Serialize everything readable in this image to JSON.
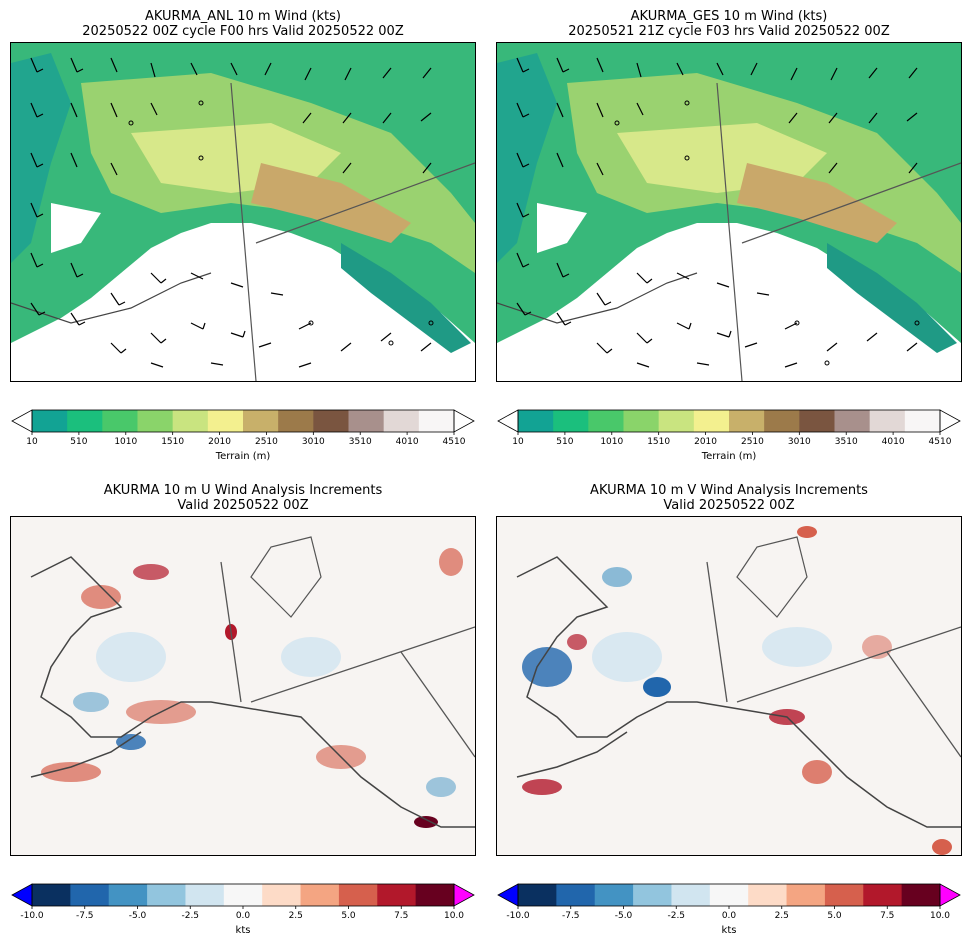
{
  "panels": [
    {
      "title_line1": "AKURMA_ANL 10 m Wind (kts)",
      "title_line2": "20250522 00Z cycle F00 hrs Valid 20250522 00Z"
    },
    {
      "title_line1": "AKURMA_GES 10 m Wind (kts)",
      "title_line2": "20250521 21Z cycle F03 hrs Valid 20250522 00Z"
    },
    {
      "title_line1": "AKURMA 10 m U Wind Analysis Increments",
      "title_line2": "Valid 20250522 00Z"
    },
    {
      "title_line1": "AKURMA 10 m V Wind Analysis Increments",
      "title_line2": "Valid 20250522 00Z"
    }
  ],
  "terrain_colorbar": {
    "label": "Terrain (m)",
    "ticks": [
      "10",
      "510",
      "1010",
      "1510",
      "2010",
      "2510",
      "3010",
      "3510",
      "4010",
      "4510"
    ],
    "colors": [
      "#12a394",
      "#1bbf7d",
      "#49c86a",
      "#8ad46a",
      "#c9e480",
      "#f3f08f",
      "#c8b06a",
      "#9c7a4a",
      "#7a5540",
      "#a8908c",
      "#e2d8d6",
      "#f8f6f6"
    ]
  },
  "increment_colorbar": {
    "label": "kts",
    "ticks": [
      "-10.0",
      "-7.5",
      "-5.0",
      "-2.5",
      "0.0",
      "2.5",
      "5.0",
      "7.5",
      "10.0"
    ],
    "colors": [
      "#0a3060",
      "#2166ac",
      "#4393c3",
      "#92c5de",
      "#d1e5f0",
      "#f7f7f7",
      "#fddbc7",
      "#f4a582",
      "#d6604d",
      "#b2182b",
      "#67001f"
    ],
    "under_color": "#0000ff",
    "over_color": "#ff00ff"
  }
}
